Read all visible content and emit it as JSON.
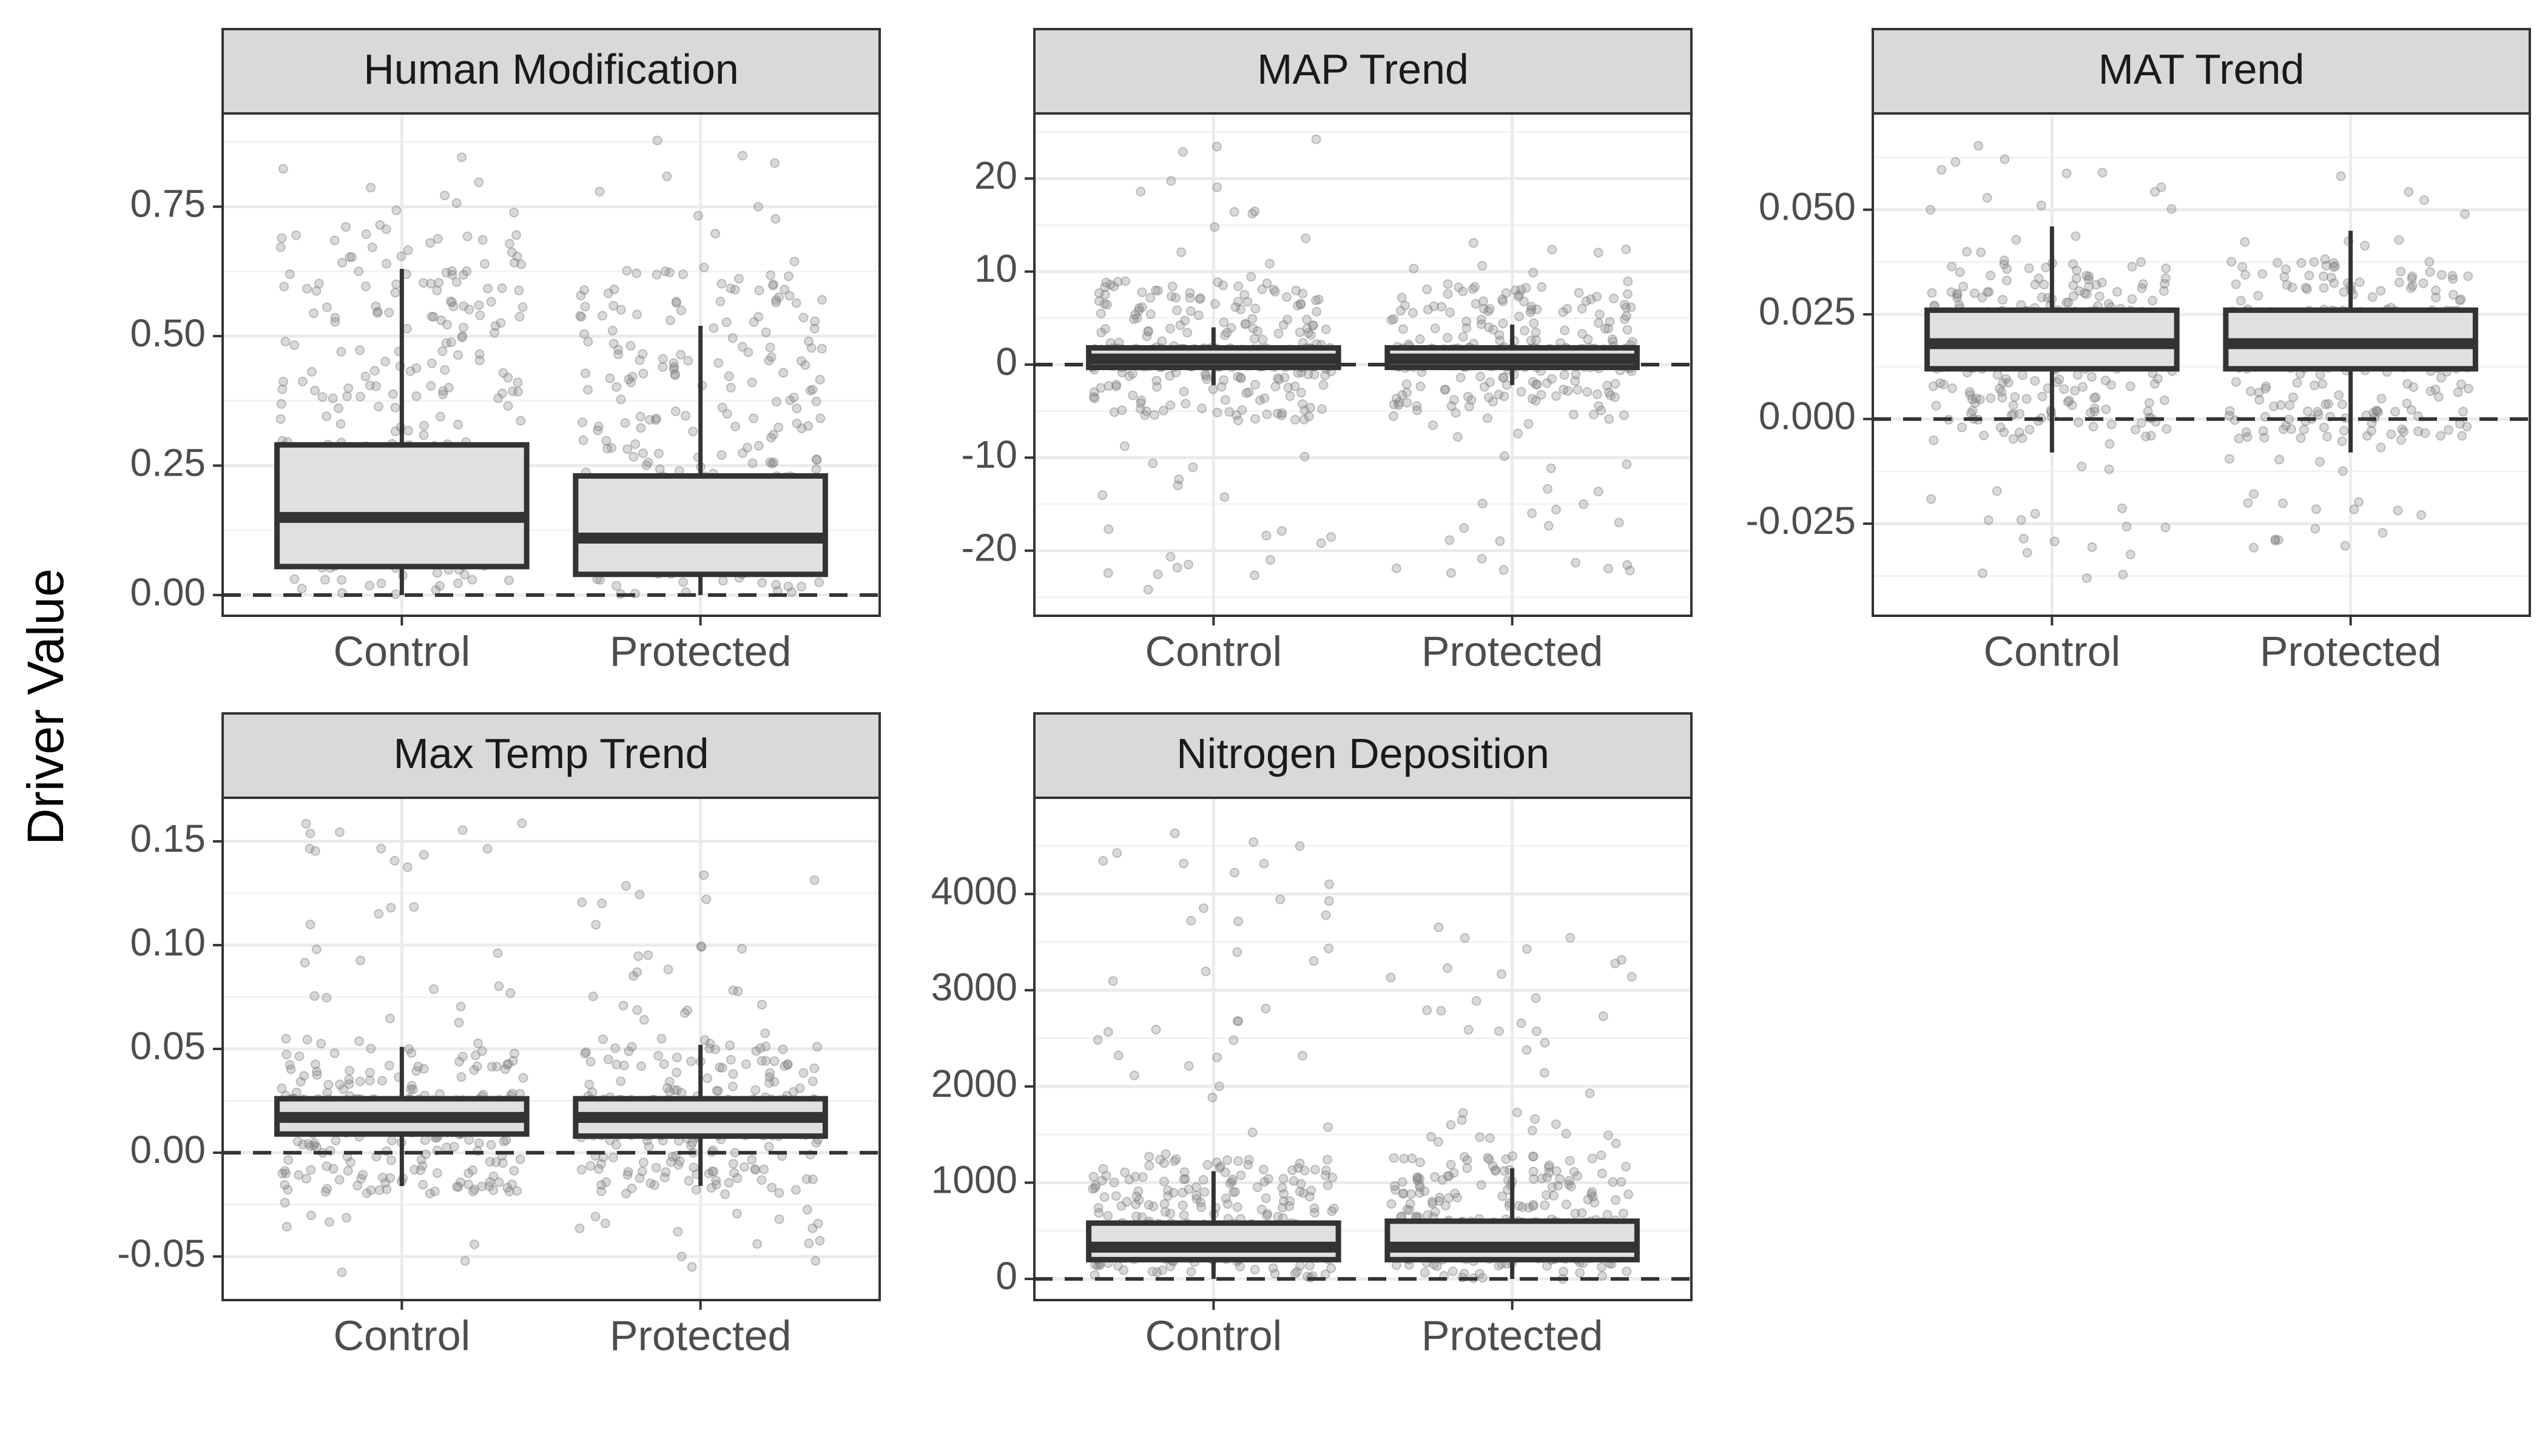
{
  "ylabel": "Driver Value",
  "colors": {
    "points": "#808080",
    "box_fill": "#e0e0e0",
    "box_line": "#333333",
    "strip_fill": "#d9d9d9",
    "grid": "#ebebeb"
  },
  "chart_data": [
    {
      "type": "box",
      "title": "Human Modification",
      "categories": [
        "Control",
        "Protected"
      ],
      "ylim": [
        -0.04,
        0.93
      ],
      "yticks": [
        0.0,
        0.25,
        0.5,
        0.75
      ],
      "ytick_labels": [
        "0.00",
        "0.25",
        "0.50",
        "0.75"
      ],
      "zero_line": 0,
      "boxes": [
        {
          "whisker_low": 0.0,
          "q1": 0.055,
          "median": 0.15,
          "q3": 0.29,
          "whisker_high": 0.63,
          "point_min": 0.0,
          "point_max": 0.89,
          "dense_min": 0.0,
          "dense_max": 0.7
        },
        {
          "whisker_low": 0.0,
          "q1": 0.04,
          "median": 0.11,
          "q3": 0.23,
          "whisker_high": 0.52,
          "point_min": 0.0,
          "point_max": 0.89,
          "dense_min": 0.0,
          "dense_max": 0.65
        }
      ]
    },
    {
      "type": "box",
      "title": "MAP Trend",
      "categories": [
        "Control",
        "Protected"
      ],
      "ylim": [
        -27,
        27
      ],
      "yticks": [
        -20,
        -10,
        0,
        10,
        20
      ],
      "ytick_labels": [
        "-20",
        "-10",
        "0",
        "10",
        "20"
      ],
      "zero_line": 0,
      "boxes": [
        {
          "whisker_low": -2.2,
          "q1": -0.3,
          "median": 0.6,
          "q3": 1.8,
          "whisker_high": 4.0,
          "point_min": -25,
          "point_max": 25,
          "dense_min": -6,
          "dense_max": 9
        },
        {
          "whisker_low": -2.2,
          "q1": -0.3,
          "median": 0.6,
          "q3": 1.8,
          "whisker_high": 4.3,
          "point_min": -23,
          "point_max": 14,
          "dense_min": -6,
          "dense_max": 9
        }
      ]
    },
    {
      "type": "box",
      "title": "MAT Trend",
      "categories": [
        "Control",
        "Protected"
      ],
      "ylim": [
        -0.047,
        0.073
      ],
      "yticks": [
        -0.025,
        0.0,
        0.025,
        0.05
      ],
      "ytick_labels": [
        "-0.025",
        "0.000",
        "0.025",
        "0.050"
      ],
      "zero_line": 0,
      "boxes": [
        {
          "whisker_low": -0.008,
          "q1": 0.012,
          "median": 0.018,
          "q3": 0.026,
          "whisker_high": 0.046,
          "point_min": -0.042,
          "point_max": 0.069,
          "dense_min": -0.005,
          "dense_max": 0.038
        },
        {
          "whisker_low": -0.008,
          "q1": 0.012,
          "median": 0.018,
          "q3": 0.026,
          "whisker_high": 0.045,
          "point_min": -0.032,
          "point_max": 0.06,
          "dense_min": -0.005,
          "dense_max": 0.038
        }
      ]
    },
    {
      "type": "box",
      "title": "Max Temp Trend",
      "categories": [
        "Control",
        "Protected"
      ],
      "ylim": [
        -0.071,
        0.171
      ],
      "yticks": [
        -0.05,
        0.0,
        0.05,
        0.1,
        0.15
      ],
      "ytick_labels": [
        "-0.05",
        "0.00",
        "0.05",
        "0.10",
        "0.15"
      ],
      "zero_line": 0,
      "boxes": [
        {
          "whisker_low": -0.016,
          "q1": 0.009,
          "median": 0.017,
          "q3": 0.026,
          "whisker_high": 0.051,
          "point_min": -0.06,
          "point_max": 0.16,
          "dense_min": -0.02,
          "dense_max": 0.055
        },
        {
          "whisker_low": -0.016,
          "q1": 0.008,
          "median": 0.017,
          "q3": 0.026,
          "whisker_high": 0.052,
          "point_min": -0.06,
          "point_max": 0.14,
          "dense_min": -0.02,
          "dense_max": 0.055
        }
      ]
    },
    {
      "type": "box",
      "title": "Nitrogen Deposition",
      "categories": [
        "Control",
        "Protected"
      ],
      "ylim": [
        -220,
        5000
      ],
      "yticks": [
        0,
        1000,
        2000,
        3000,
        4000
      ],
      "ytick_labels": [
        "0",
        "1000",
        "2000",
        "3000",
        "4000"
      ],
      "zero_line": 0,
      "boxes": [
        {
          "whisker_low": 0,
          "q1": 200,
          "median": 330,
          "q3": 580,
          "whisker_high": 1120,
          "point_min": 0,
          "point_max": 4750,
          "dense_min": 0,
          "dense_max": 1300
        },
        {
          "whisker_low": 0,
          "q1": 200,
          "median": 330,
          "q3": 600,
          "whisker_high": 1150,
          "point_min": 0,
          "point_max": 3780,
          "dense_min": 0,
          "dense_max": 1300
        }
      ]
    }
  ]
}
